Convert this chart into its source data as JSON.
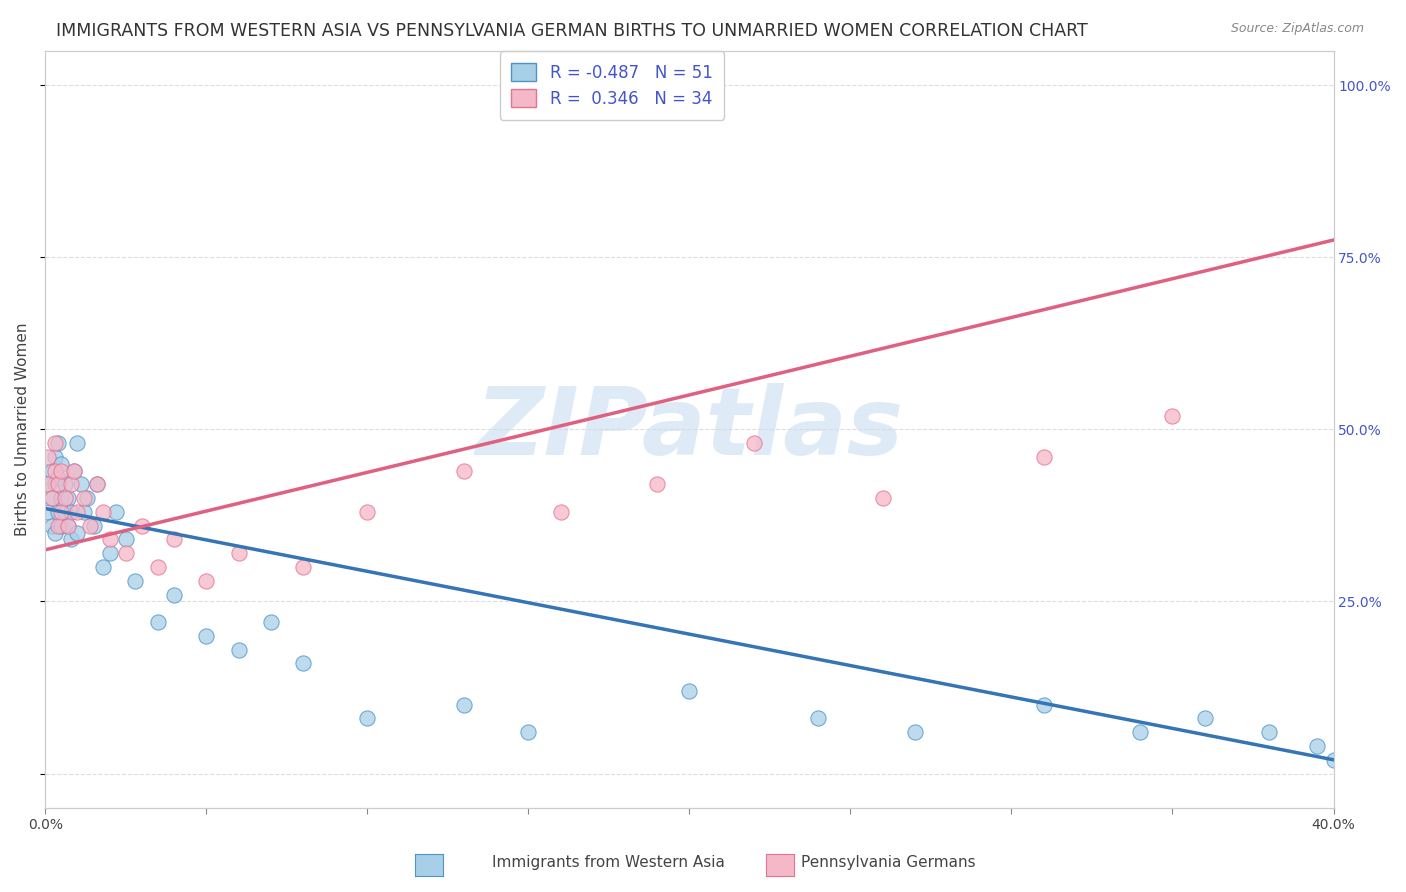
{
  "title": "IMMIGRANTS FROM WESTERN ASIA VS PENNSYLVANIA GERMAN BIRTHS TO UNMARRIED WOMEN CORRELATION CHART",
  "source": "Source: ZipAtlas.com",
  "ylabel": "Births to Unmarried Women",
  "xlim": [
    0.0,
    0.4
  ],
  "ylim": [
    -0.05,
    1.05
  ],
  "xticks": [
    0.0,
    0.05,
    0.1,
    0.15,
    0.2,
    0.25,
    0.3,
    0.35,
    0.4
  ],
  "ytick_positions": [
    0.0,
    0.25,
    0.5,
    0.75,
    1.0
  ],
  "ytick_labels": [
    "",
    "25.0%",
    "50.0%",
    "75.0%",
    "100.0%"
  ],
  "blue_color": "#a8cfe8",
  "pink_color": "#f5b8c8",
  "blue_edge_color": "#4d94c8",
  "pink_edge_color": "#e87090",
  "blue_line_color": "#3575b5",
  "pink_line_color": "#e06080",
  "watermark": "ZIPatlas",
  "watermark_color": "#c8ddf0",
  "blue_scatter_x": [
    0.001,
    0.001,
    0.002,
    0.002,
    0.002,
    0.003,
    0.003,
    0.003,
    0.004,
    0.004,
    0.004,
    0.005,
    0.005,
    0.005,
    0.006,
    0.006,
    0.007,
    0.007,
    0.008,
    0.008,
    0.009,
    0.01,
    0.01,
    0.011,
    0.012,
    0.013,
    0.015,
    0.016,
    0.018,
    0.02,
    0.022,
    0.025,
    0.028,
    0.035,
    0.04,
    0.05,
    0.06,
    0.07,
    0.08,
    0.1,
    0.13,
    0.15,
    0.2,
    0.24,
    0.27,
    0.31,
    0.34,
    0.36,
    0.38,
    0.395,
    0.4
  ],
  "blue_scatter_y": [
    0.38,
    0.42,
    0.36,
    0.4,
    0.44,
    0.35,
    0.42,
    0.46,
    0.38,
    0.43,
    0.48,
    0.36,
    0.4,
    0.45,
    0.38,
    0.42,
    0.36,
    0.4,
    0.34,
    0.38,
    0.44,
    0.48,
    0.35,
    0.42,
    0.38,
    0.4,
    0.36,
    0.42,
    0.3,
    0.32,
    0.38,
    0.34,
    0.28,
    0.22,
    0.26,
    0.2,
    0.18,
    0.22,
    0.16,
    0.08,
    0.1,
    0.06,
    0.12,
    0.08,
    0.06,
    0.1,
    0.06,
    0.08,
    0.06,
    0.04,
    0.02
  ],
  "pink_scatter_x": [
    0.001,
    0.001,
    0.002,
    0.003,
    0.003,
    0.004,
    0.004,
    0.005,
    0.005,
    0.006,
    0.007,
    0.008,
    0.009,
    0.01,
    0.012,
    0.014,
    0.016,
    0.018,
    0.02,
    0.025,
    0.03,
    0.035,
    0.04,
    0.05,
    0.06,
    0.08,
    0.1,
    0.13,
    0.16,
    0.19,
    0.22,
    0.26,
    0.31,
    0.35
  ],
  "pink_scatter_y": [
    0.42,
    0.46,
    0.4,
    0.44,
    0.48,
    0.36,
    0.42,
    0.38,
    0.44,
    0.4,
    0.36,
    0.42,
    0.44,
    0.38,
    0.4,
    0.36,
    0.42,
    0.38,
    0.34,
    0.32,
    0.36,
    0.3,
    0.34,
    0.28,
    0.32,
    0.3,
    0.38,
    0.44,
    0.38,
    0.42,
    0.48,
    0.4,
    0.46,
    0.52
  ],
  "blue_line_x": [
    0.0,
    0.4
  ],
  "blue_line_y": [
    0.385,
    0.02
  ],
  "pink_line_x": [
    0.0,
    0.4
  ],
  "pink_line_y": [
    0.325,
    0.775
  ],
  "title_fontsize": 12.5,
  "axis_label_fontsize": 11,
  "tick_fontsize": 10,
  "legend_fontsize": 12,
  "background_color": "#ffffff",
  "grid_color": "#dddddd",
  "legend_text_color": "#4455cc",
  "axis_color": "#888888"
}
